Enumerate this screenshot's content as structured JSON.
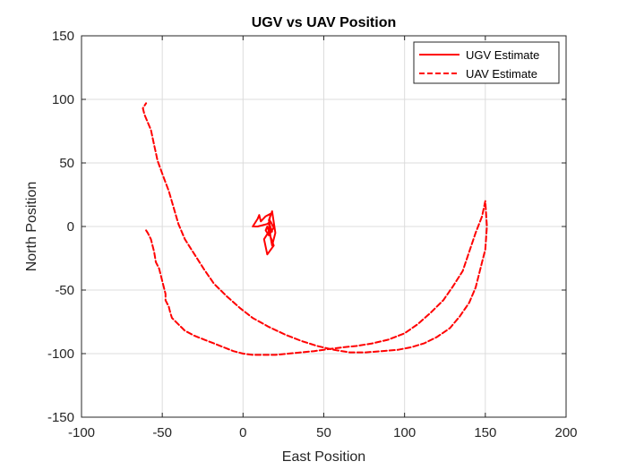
{
  "chart_data": {
    "type": "line",
    "title": "UGV vs UAV Position",
    "xlabel": "East Position",
    "ylabel": "North Position",
    "xlim": [
      -100,
      200
    ],
    "ylim": [
      -150,
      150
    ],
    "xticks": [
      -100,
      -50,
      0,
      50,
      100,
      150,
      200
    ],
    "yticks": [
      -150,
      -100,
      -50,
      0,
      50,
      100,
      150
    ],
    "grid": true,
    "legend_position": "top-right",
    "series": [
      {
        "name": "UGV Estimate",
        "color": "#ff0000",
        "style": "solid",
        "x": [
          6,
          9,
          10,
          11,
          14,
          17,
          16,
          18,
          16,
          17,
          19,
          15,
          13,
          17,
          16,
          18,
          20,
          18,
          17,
          15,
          14,
          16,
          19,
          17,
          15,
          12,
          9,
          7
        ],
        "y": [
          0,
          6,
          9,
          4,
          8,
          10,
          2,
          -4,
          3,
          -8,
          -15,
          -22,
          -10,
          -2,
          5,
          12,
          -5,
          -15,
          -8,
          0,
          -3,
          -7,
          -1,
          4,
          2,
          1,
          0,
          0
        ]
      },
      {
        "name": "UAV Estimate",
        "color": "#ff0000",
        "style": "dashed",
        "x": [
          -60,
          -59,
          -57,
          -55,
          -54,
          -52,
          -51,
          -50,
          -49,
          -48,
          -48,
          -46,
          -45,
          -44,
          -40,
          -36,
          -30,
          -24,
          -18,
          -12,
          -6,
          0,
          6,
          12,
          20,
          28,
          36,
          44,
          50,
          56,
          62,
          70,
          80,
          90,
          100,
          108,
          116,
          124,
          130,
          136,
          140,
          144,
          148,
          150,
          151,
          150,
          147,
          144,
          140,
          134,
          128,
          120,
          112,
          104,
          96,
          86,
          76,
          66,
          56,
          46,
          36,
          26,
          16,
          6,
          -2,
          -10,
          -18,
          -24,
          -30,
          -36,
          -40,
          -43,
          -46,
          -49,
          -51,
          -53,
          -54,
          -55,
          -56,
          -57,
          -59,
          -61,
          -62,
          -60
        ],
        "y": [
          -3,
          -5,
          -10,
          -20,
          -28,
          -33,
          -38,
          -43,
          -48,
          -53,
          -58,
          -63,
          -68,
          -72,
          -77,
          -82,
          -86,
          -89,
          -92,
          -95,
          -98,
          -100,
          -101,
          -101,
          -101,
          -100,
          -99,
          -98,
          -97,
          -96,
          -95,
          -94,
          -92,
          -89,
          -84,
          -77,
          -68,
          -58,
          -47,
          -35,
          -20,
          -5,
          8,
          20,
          0,
          -18,
          -33,
          -48,
          -60,
          -71,
          -80,
          -87,
          -92,
          -95,
          -97,
          -98,
          -99,
          -99,
          -97,
          -94,
          -90,
          -85,
          -79,
          -72,
          -64,
          -55,
          -45,
          -34,
          -22,
          -10,
          2,
          15,
          28,
          38,
          45,
          52,
          58,
          64,
          70,
          76,
          82,
          88,
          93,
          97
        ]
      }
    ]
  }
}
